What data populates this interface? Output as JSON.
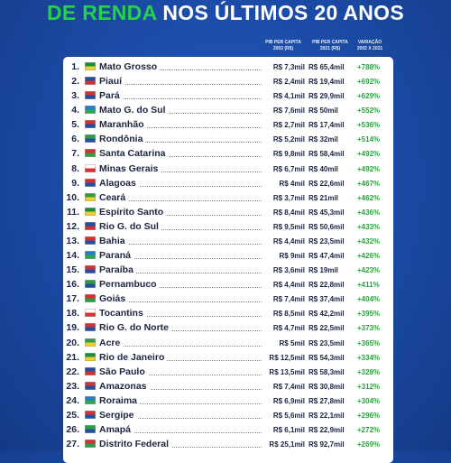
{
  "header": {
    "title_highlight": "DE RENDA",
    "title_rest": "NOS ÚLTIMOS 20 ANOS",
    "columns": [
      [
        "PIB PER CAPITA",
        "2002 (R$)"
      ],
      [
        "PIB PER CAPITA",
        "2021 (R$)"
      ],
      [
        "VARIAÇÃO",
        "2002 X 2021"
      ]
    ]
  },
  "table": {
    "rows": [
      [
        "1.",
        "Mato Grosso",
        "R$ 7,3mil",
        "R$ 65,4mil",
        "+788%"
      ],
      [
        "2.",
        "Piauí",
        "R$ 2,4mil",
        "R$ 19,4mil",
        "+692%"
      ],
      [
        "3.",
        "Pará",
        "R$ 4,1mil",
        "R$ 29,9mil",
        "+629%"
      ],
      [
        "4.",
        "Mato G. do Sul",
        "R$ 7,6mil",
        "R$ 50mil",
        "+552%"
      ],
      [
        "5.",
        "Maranhão",
        "R$ 2,7mil",
        "R$ 17,4mil",
        "+536%"
      ],
      [
        "6.",
        "Rondônia",
        "R$ 5,2mil",
        "R$ 32mil",
        "+514%"
      ],
      [
        "7.",
        "Santa Catarina",
        "R$ 9,8mil",
        "R$ 58,4mil",
        "+492%"
      ],
      [
        "8.",
        "Minas Gerais",
        "R$ 6,7mil",
        "R$ 40mil",
        "+492%"
      ],
      [
        "9.",
        "Alagoas",
        "R$ 4mil",
        "R$ 22,6mil",
        "+467%"
      ],
      [
        "10.",
        "Ceará",
        "R$ 3,7mil",
        "R$ 21mil",
        "+462%"
      ],
      [
        "11.",
        "Espírito Santo",
        "R$ 8,4mil",
        "R$ 45,3mil",
        "+436%"
      ],
      [
        "12.",
        "Rio G. do Sul",
        "R$ 9,5mil",
        "R$ 50,6mil",
        "+433%"
      ],
      [
        "13.",
        "Bahia",
        "R$ 4,4mil",
        "R$ 23,5mil",
        "+432%"
      ],
      [
        "14.",
        "Paraná",
        "R$ 9mil",
        "R$ 47,4mil",
        "+426%"
      ],
      [
        "15.",
        "Paraíba",
        "R$ 3,6mil",
        "R$ 19mil",
        "+423%"
      ],
      [
        "16.",
        "Pernambuco",
        "R$ 4,4mil",
        "R$ 22,8mil",
        "+411%"
      ],
      [
        "17.",
        "Goiás",
        "R$ 7,4mil",
        "R$ 37,4mil",
        "+404%"
      ],
      [
        "18.",
        "Tocantins",
        "R$ 8,5mil",
        "R$ 42,2mil",
        "+395%"
      ],
      [
        "19.",
        "Rio G. do Norte",
        "R$ 4,7mil",
        "R$ 22,5mil",
        "+373%"
      ],
      [
        "20.",
        "Acre",
        "R$ 5mil",
        "R$ 23,5mil",
        "+365%"
      ],
      [
        "21.",
        "Rio de Janeiro",
        "R$ 12,5mil",
        "R$ 54,3mil",
        "+334%"
      ],
      [
        "22.",
        "São Paulo",
        "R$ 13,5mil",
        "R$ 58,3mil",
        "+328%"
      ],
      [
        "23.",
        "Amazonas",
        "R$ 7,4mil",
        "R$ 30,8mil",
        "+312%"
      ],
      [
        "24.",
        "Roraima",
        "R$ 6,9mil",
        "R$ 27,8mil",
        "+304%"
      ],
      [
        "25.",
        "Sergipe",
        "R$ 5,6mil",
        "R$ 22,1mil",
        "+296%"
      ],
      [
        "26.",
        "Amapá",
        "R$ 6,1mil",
        "R$ 22,9mil",
        "+272%"
      ],
      [
        "27.",
        "Distrito Federal",
        "R$ 25,1mil",
        "R$ 92,7mil",
        "+269%"
      ]
    ]
  }
}
